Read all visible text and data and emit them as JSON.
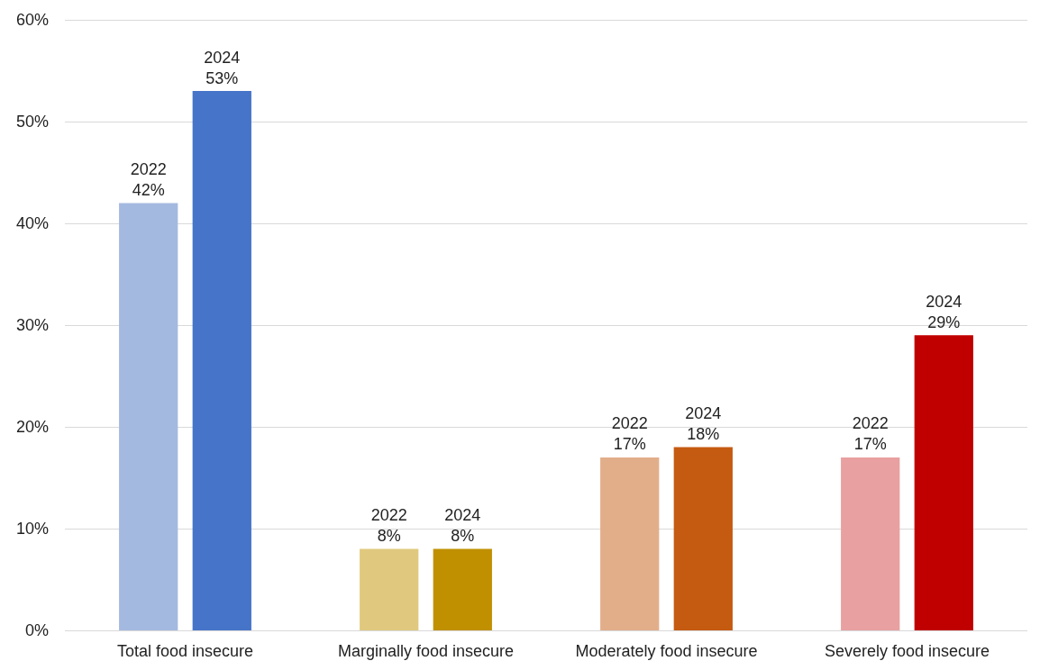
{
  "chart_data": {
    "type": "bar",
    "categories": [
      "Total food insecure",
      "Marginally food insecure",
      "Moderately food insecure",
      "Severely food insecure"
    ],
    "series": [
      {
        "name": "2022",
        "values": [
          42,
          8,
          17,
          17
        ],
        "colors": [
          "#a4b9e0",
          "#e0c97e",
          "#e2ae8a",
          "#e8a0a0"
        ],
        "value_labels": [
          "42%",
          "8%",
          "17%",
          "17%"
        ]
      },
      {
        "name": "2024",
        "values": [
          53,
          8,
          18,
          29
        ],
        "colors": [
          "#4674c8",
          "#c09000",
          "#c55a11",
          "#c00000"
        ],
        "value_labels": [
          "53%",
          "8%",
          "18%",
          "29%"
        ]
      }
    ],
    "ylim": [
      0,
      60
    ],
    "yticks": [
      {
        "value": 0,
        "label": "0%"
      },
      {
        "value": 10,
        "label": "10%"
      },
      {
        "value": 20,
        "label": "20%"
      },
      {
        "value": 30,
        "label": "30%"
      },
      {
        "value": 40,
        "label": "40%"
      },
      {
        "value": 50,
        "label": "50%"
      },
      {
        "value": 60,
        "label": "60%"
      }
    ],
    "grid": "y",
    "legend": false
  }
}
